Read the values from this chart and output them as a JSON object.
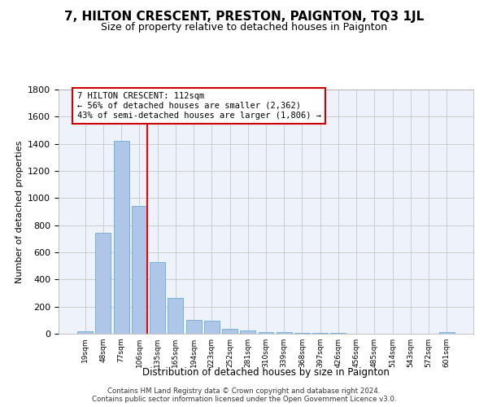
{
  "title": "7, HILTON CRESCENT, PRESTON, PAIGNTON, TQ3 1JL",
  "subtitle": "Size of property relative to detached houses in Paignton",
  "xlabel": "Distribution of detached houses by size in Paignton",
  "ylabel": "Number of detached properties",
  "categories": [
    "19sqm",
    "48sqm",
    "77sqm",
    "106sqm",
    "135sqm",
    "165sqm",
    "194sqm",
    "223sqm",
    "252sqm",
    "281sqm",
    "310sqm",
    "339sqm",
    "368sqm",
    "397sqm",
    "426sqm",
    "456sqm",
    "485sqm",
    "514sqm",
    "543sqm",
    "572sqm",
    "601sqm"
  ],
  "values": [
    20,
    745,
    1420,
    940,
    530,
    265,
    105,
    95,
    38,
    25,
    15,
    10,
    8,
    8,
    5,
    3,
    2,
    2,
    2,
    1,
    10
  ],
  "bar_color": "#aec6e8",
  "bar_edge_color": "#5a9fd4",
  "grid_color": "#cccccc",
  "background_color": "#eef2fa",
  "annotation_text": "7 HILTON CRESCENT: 112sqm\n← 56% of detached houses are smaller (2,362)\n43% of semi-detached houses are larger (1,806) →",
  "annotation_box_color": "#cc0000",
  "footer": "Contains HM Land Registry data © Crown copyright and database right 2024.\nContains public sector information licensed under the Open Government Licence v3.0.",
  "ylim": [
    0,
    1800
  ],
  "yticks": [
    0,
    200,
    400,
    600,
    800,
    1000,
    1200,
    1400,
    1600,
    1800
  ]
}
